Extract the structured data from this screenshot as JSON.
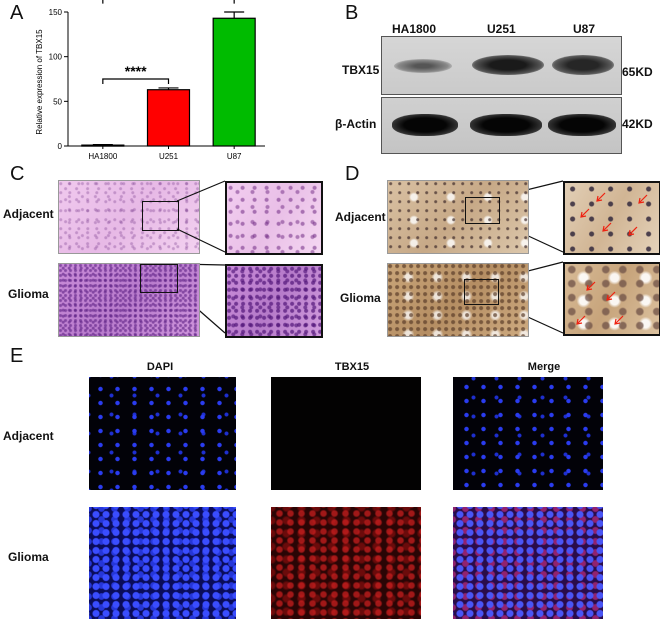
{
  "panels": {
    "a": "A",
    "b": "B",
    "c": "C",
    "d": "D",
    "e": "E"
  },
  "chart_data": {
    "type": "bar",
    "categories": [
      "HA1800",
      "U251",
      "U87"
    ],
    "values": [
      1,
      63,
      143
    ],
    "errors": [
      0.5,
      2,
      7
    ],
    "colors": [
      "#000000",
      "#ff0000",
      "#00bb00"
    ],
    "ylabel": "Relative expression of  TBX15",
    "ylim": [
      0,
      150
    ],
    "yticks": [
      0,
      50,
      100,
      150
    ],
    "significance": [
      {
        "from": "HA1800",
        "to": "U251",
        "label": "****"
      },
      {
        "from": "HA1800",
        "to": "U87",
        "label": "****"
      }
    ]
  },
  "western": {
    "lanes": [
      "HA1800",
      "U251",
      "U87"
    ],
    "rows": [
      {
        "protein": "TBX15",
        "size": "65KD"
      },
      {
        "protein": "β-Actin",
        "size": "42KD"
      }
    ]
  },
  "histology": {
    "rows": [
      "Adjacent",
      "Glioma"
    ]
  },
  "fluorescence": {
    "columns": [
      "DAPI",
      "TBX15",
      "Merge"
    ],
    "rows": [
      "Adjacent",
      "Glioma"
    ]
  }
}
